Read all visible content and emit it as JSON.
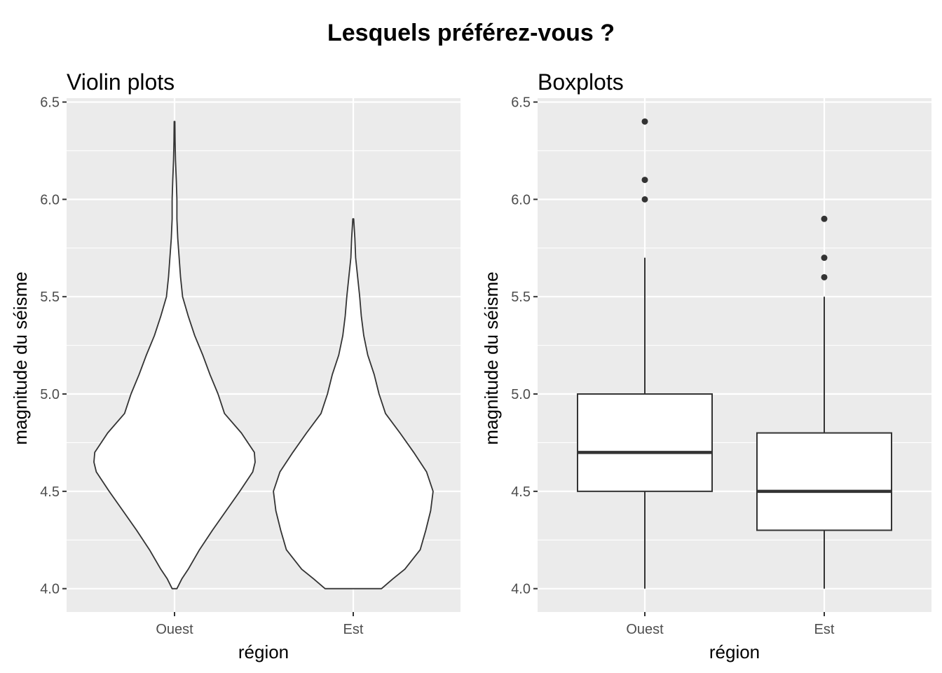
{
  "figure_title": "Lesquels préférez-vous ?",
  "colors": {
    "panel_background": "#ebebeb",
    "grid": "#ffffff",
    "outline": "#333333",
    "fill": "#ffffff",
    "tick_text": "#4d4d4d"
  },
  "chart_data": [
    {
      "type": "violin",
      "title": "Violin plots",
      "xlabel": "région",
      "ylabel": "magnitude du séisme",
      "categories": [
        "Ouest",
        "Est"
      ],
      "ylim": [
        3.88,
        6.52
      ],
      "yticks": [
        4.0,
        4.5,
        5.0,
        5.5,
        6.0,
        6.5
      ],
      "ytick_labels": [
        "4.0",
        "4.5",
        "5.0",
        "5.5",
        "6.0",
        "6.5"
      ],
      "grid": true,
      "violins": [
        {
          "category": "Ouest",
          "min": 4.0,
          "max": 6.4,
          "density": [
            [
              4.0,
              0.03
            ],
            [
              4.05,
              0.09
            ],
            [
              4.1,
              0.17
            ],
            [
              4.2,
              0.31
            ],
            [
              4.3,
              0.47
            ],
            [
              4.4,
              0.64
            ],
            [
              4.5,
              0.81
            ],
            [
              4.6,
              0.97
            ],
            [
              4.65,
              1.0
            ],
            [
              4.7,
              0.99
            ],
            [
              4.8,
              0.83
            ],
            [
              4.9,
              0.62
            ],
            [
              5.0,
              0.54
            ],
            [
              5.1,
              0.44
            ],
            [
              5.2,
              0.35
            ],
            [
              5.3,
              0.25
            ],
            [
              5.4,
              0.17
            ],
            [
              5.5,
              0.1
            ],
            [
              5.6,
              0.075
            ],
            [
              5.8,
              0.04
            ],
            [
              5.9,
              0.03
            ],
            [
              6.0,
              0.03
            ],
            [
              6.1,
              0.022
            ],
            [
              6.2,
              0.012
            ],
            [
              6.3,
              0.007
            ],
            [
              6.4,
              0.004
            ]
          ]
        },
        {
          "category": "Est",
          "min": 4.0,
          "max": 5.9,
          "density": [
            [
              4.0,
              0.35
            ],
            [
              4.05,
              0.49
            ],
            [
              4.1,
              0.64
            ],
            [
              4.2,
              0.83
            ],
            [
              4.3,
              0.9
            ],
            [
              4.4,
              0.96
            ],
            [
              4.5,
              0.99
            ],
            [
              4.6,
              0.91
            ],
            [
              4.7,
              0.75
            ],
            [
              4.8,
              0.58
            ],
            [
              4.9,
              0.4
            ],
            [
              5.0,
              0.32
            ],
            [
              5.1,
              0.26
            ],
            [
              5.2,
              0.18
            ],
            [
              5.3,
              0.13
            ],
            [
              5.4,
              0.1
            ],
            [
              5.5,
              0.08
            ],
            [
              5.6,
              0.055
            ],
            [
              5.7,
              0.03
            ],
            [
              5.8,
              0.02
            ],
            [
              5.9,
              0.005
            ]
          ]
        }
      ]
    },
    {
      "type": "box",
      "title": "Boxplots",
      "xlabel": "région",
      "ylabel": "magnitude du séisme",
      "categories": [
        "Ouest",
        "Est"
      ],
      "ylim": [
        3.88,
        6.52
      ],
      "yticks": [
        4.0,
        4.5,
        5.0,
        5.5,
        6.0,
        6.5
      ],
      "ytick_labels": [
        "4.0",
        "4.5",
        "5.0",
        "5.5",
        "6.0",
        "6.5"
      ],
      "grid": true,
      "boxes": [
        {
          "category": "Ouest",
          "whisker_low": 4.0,
          "q1": 4.5,
          "median": 4.7,
          "q3": 5.0,
          "whisker_high": 5.7,
          "outliers": [
            6.0,
            6.1,
            6.4
          ]
        },
        {
          "category": "Est",
          "whisker_low": 4.0,
          "q1": 4.3,
          "median": 4.5,
          "q3": 4.8,
          "whisker_high": 5.5,
          "outliers": [
            5.6,
            5.7,
            5.9
          ]
        }
      ]
    }
  ]
}
